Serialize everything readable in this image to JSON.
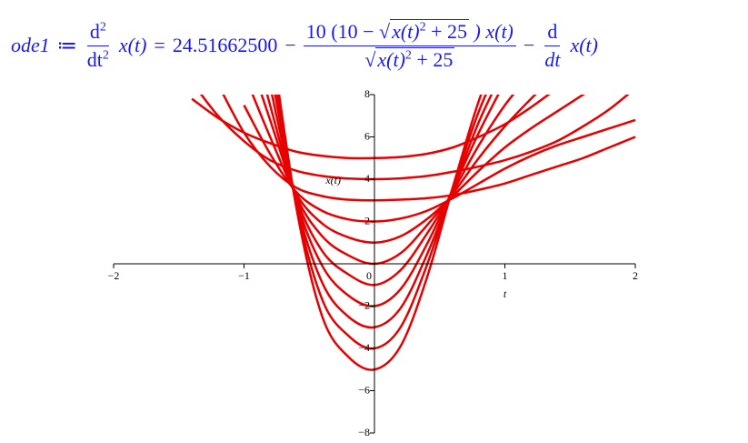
{
  "equation": {
    "name": "ode1",
    "assign": "≔",
    "d": "d",
    "order": "2",
    "dt": "dt",
    "var": "x(t)",
    "equals": "=",
    "constant": "24.51662500",
    "minus": "−",
    "numerator": {
      "prefix": "10 (10 −",
      "radical": "√",
      "radicand": "x(t)",
      "power": "2",
      "plus": "+ 25",
      "suffix": ") x(t)"
    },
    "denominator": {
      "radical": "√",
      "radicand": "x(t)",
      "power": "2",
      "plus": "+ 25"
    },
    "minus2": "−",
    "d2": "d",
    "dt2": "dt",
    "var2": "x(t)"
  },
  "chart_data": {
    "type": "line",
    "xlabel": "t",
    "ylabel": "x(t)",
    "x": [
      -1.4,
      -1.2,
      -1.0,
      -0.8,
      -0.6,
      -0.4,
      -0.2,
      0,
      0.2,
      0.4,
      0.6,
      0.8,
      1.0,
      1.2,
      1.4,
      1.6,
      1.8,
      2.0
    ],
    "series": [
      {
        "color": "#e60000",
        "values": [
          7.8,
          6.9,
          6.2,
          5.7,
          5.3,
          5.1,
          5.0,
          5,
          5.05,
          5.2,
          5.5,
          6.0,
          6.6,
          7.4,
          8.3,
          null,
          null,
          null
        ]
      },
      {
        "color": "#e60000",
        "values": [
          8.6,
          7.0,
          5.8,
          4.9,
          4.4,
          4.15,
          4.03,
          4,
          4.04,
          4.15,
          4.35,
          4.6,
          4.9,
          5.3,
          5.8,
          6.5,
          7.3,
          8.3
        ]
      },
      {
        "color": "#e60000",
        "values": [
          null,
          8.5,
          6.2,
          4.6,
          3.6,
          3.2,
          3.03,
          3,
          3.03,
          3.1,
          3.25,
          3.5,
          3.8,
          4.2,
          4.6,
          5.0,
          5.5,
          6.0
        ]
      },
      {
        "color": "#e60000",
        "values": [
          null,
          null,
          7.5,
          5.2,
          3.4,
          2.5,
          2.1,
          2,
          2.14,
          2.5,
          3.1,
          3.8,
          4.5,
          5.1,
          5.6,
          6.0,
          6.4,
          6.8
        ]
      },
      {
        "color": "#e60000",
        "values": [
          null,
          null,
          9,
          6.0,
          3.3,
          1.9,
          1.25,
          1,
          1.3,
          2.1,
          3.2,
          4.4,
          5.5,
          6.4,
          7.2,
          8.0,
          8.8,
          null
        ]
      },
      {
        "color": "#e60000",
        "values": [
          null,
          null,
          10.5,
          6.8,
          3.2,
          1.3,
          0.4,
          0,
          0.5,
          1.8,
          3.3,
          5.0,
          6.5,
          7.8,
          9,
          null,
          null,
          null
        ]
      },
      {
        "color": "#e60000",
        "values": [
          null,
          null,
          12,
          7.5,
          3.1,
          0.6,
          -0.5,
          -1,
          -0.3,
          1.4,
          3.4,
          5.6,
          7.5,
          9,
          null,
          null,
          null,
          null
        ]
      },
      {
        "color": "#e60000",
        "values": [
          null,
          null,
          null,
          8.4,
          3.0,
          -0.1,
          -1.5,
          -2,
          -1.2,
          0.9,
          3.5,
          6.2,
          8.6,
          null,
          null,
          null,
          null,
          null
        ]
      },
      {
        "color": "#e60000",
        "values": [
          null,
          null,
          null,
          9.3,
          2.9,
          -0.9,
          -2.5,
          -3,
          -2.1,
          0.4,
          3.5,
          6.7,
          9.3,
          null,
          null,
          null,
          null,
          null
        ]
      },
      {
        "color": "#e60000",
        "values": [
          null,
          null,
          null,
          10.2,
          2.8,
          -1.7,
          -3.4,
          -4,
          -3.0,
          -0.1,
          3.6,
          7.2,
          10,
          null,
          null,
          null,
          null,
          null
        ]
      },
      {
        "color": "#e60000",
        "values": [
          null,
          null,
          null,
          11,
          2.7,
          -2.5,
          -4.4,
          -5,
          -3.9,
          -0.7,
          3.6,
          7.7,
          10.8,
          null,
          null,
          null,
          null,
          null
        ]
      }
    ],
    "xlim": [
      -2,
      2
    ],
    "ylim": [
      -8,
      8
    ],
    "xticks": [
      {
        "value": -2,
        "label": "−2"
      },
      {
        "value": -1,
        "label": "−1"
      },
      0,
      1,
      2
    ],
    "yticks": [
      {
        "value": -8,
        "label": "−8"
      },
      {
        "value": -6,
        "label": "−6"
      },
      {
        "value": -4,
        "label": "−4"
      },
      {
        "value": -2,
        "label": "−2"
      },
      2,
      4,
      6,
      8
    ]
  }
}
